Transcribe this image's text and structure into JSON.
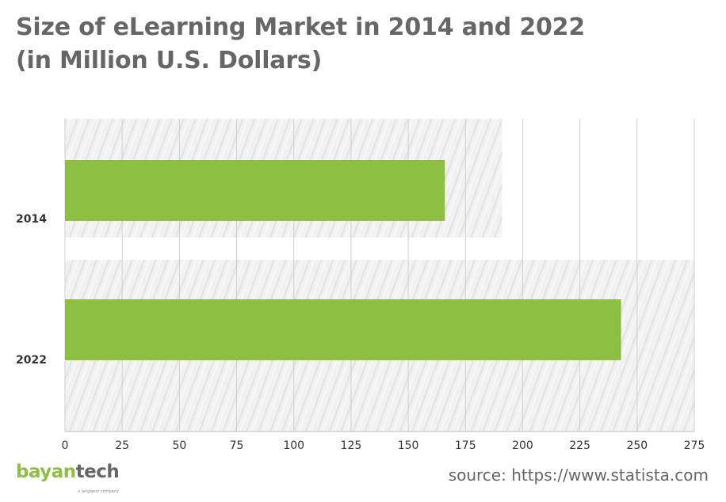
{
  "title_line1": "Size of eLearning Market in 2014 and 2022",
  "title_line2": "(in Million U.S. Dollars)",
  "chart_data": {
    "type": "bar",
    "orientation": "horizontal",
    "categories": [
      "2014",
      "2022"
    ],
    "values": [
      166,
      243
    ],
    "xlim": [
      0,
      275
    ],
    "xticks": [
      "0",
      "25",
      "50",
      "75",
      "100",
      "125",
      "150",
      "175",
      "200",
      "225",
      "250",
      "275"
    ],
    "xtick_values": [
      0,
      25,
      50,
      75,
      100,
      125,
      150,
      175,
      200,
      225,
      250,
      275
    ],
    "grid": true,
    "bar_color": "#8dc042",
    "background_bands": [
      191,
      275
    ]
  },
  "logo": {
    "part1": "bayan",
    "part2": "tech",
    "tagline": "a langwest company"
  },
  "source": "source: https://www.statista.com",
  "colors": {
    "title": "#666666",
    "bar": "#8dc042",
    "band": "#efefef",
    "grid": "#cfcfcf"
  }
}
